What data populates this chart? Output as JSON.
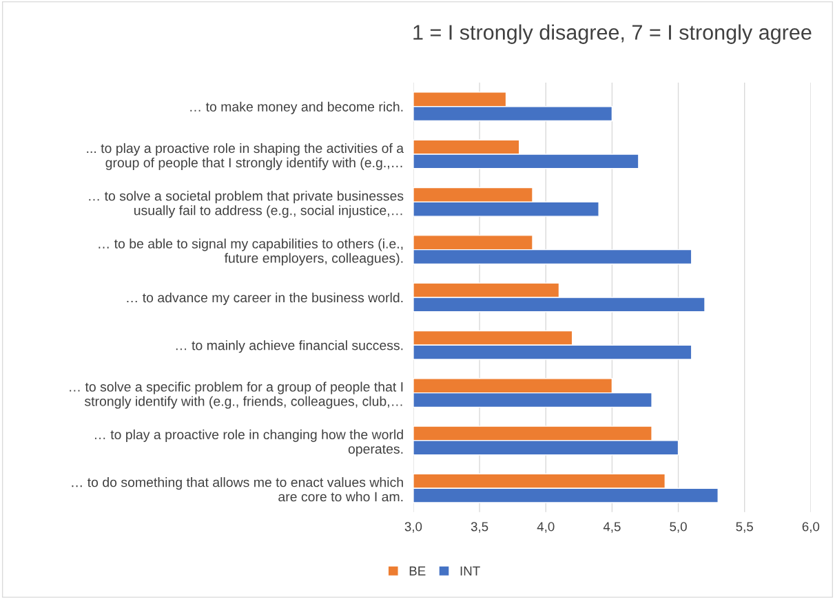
{
  "chart_data": {
    "type": "bar",
    "orientation": "horizontal",
    "title": "1 = I strongly disagree, 7 = I strongly agree",
    "categories": [
      "… to make money and become rich.",
      "... to play a proactive role in shaping the activities of a\ngroup of people that I strongly identify with (e.g.,…",
      "… to solve a societal problem that private businesses\nusually fail to address (e.g., social injustice,…",
      "… to be able to signal my capabilities to others (i.e.,\nfuture employers, colleagues).",
      "… to advance my career in the business world.",
      "… to mainly achieve financial success.",
      "… to solve a specific problem for a group of people that I\nstrongly identify with (e.g., friends, colleagues, club,…",
      "… to play a proactive role in changing how the world\noperates.",
      "… to do something that allows me to enact values which\nare core to who I am."
    ],
    "series": [
      {
        "name": "BE",
        "color": "#ed7d31",
        "values": [
          3.7,
          3.8,
          3.9,
          3.9,
          4.1,
          4.2,
          4.5,
          4.8,
          4.9
        ]
      },
      {
        "name": "INT",
        "color": "#4472c4",
        "values": [
          4.5,
          4.7,
          4.4,
          5.1,
          5.2,
          5.1,
          4.8,
          5.0,
          5.3
        ]
      }
    ],
    "xlim": [
      3,
      6
    ],
    "xticks": [
      {
        "value": 3,
        "label": "3,0"
      },
      {
        "value": 3.5,
        "label": "3,5"
      },
      {
        "value": 4,
        "label": "4,0"
      },
      {
        "value": 4.5,
        "label": "4,5"
      },
      {
        "value": 5,
        "label": "5,0"
      },
      {
        "value": 5.5,
        "label": "5,5"
      },
      {
        "value": 6,
        "label": "6,0"
      }
    ],
    "grid": "x",
    "legend": "bottom"
  }
}
